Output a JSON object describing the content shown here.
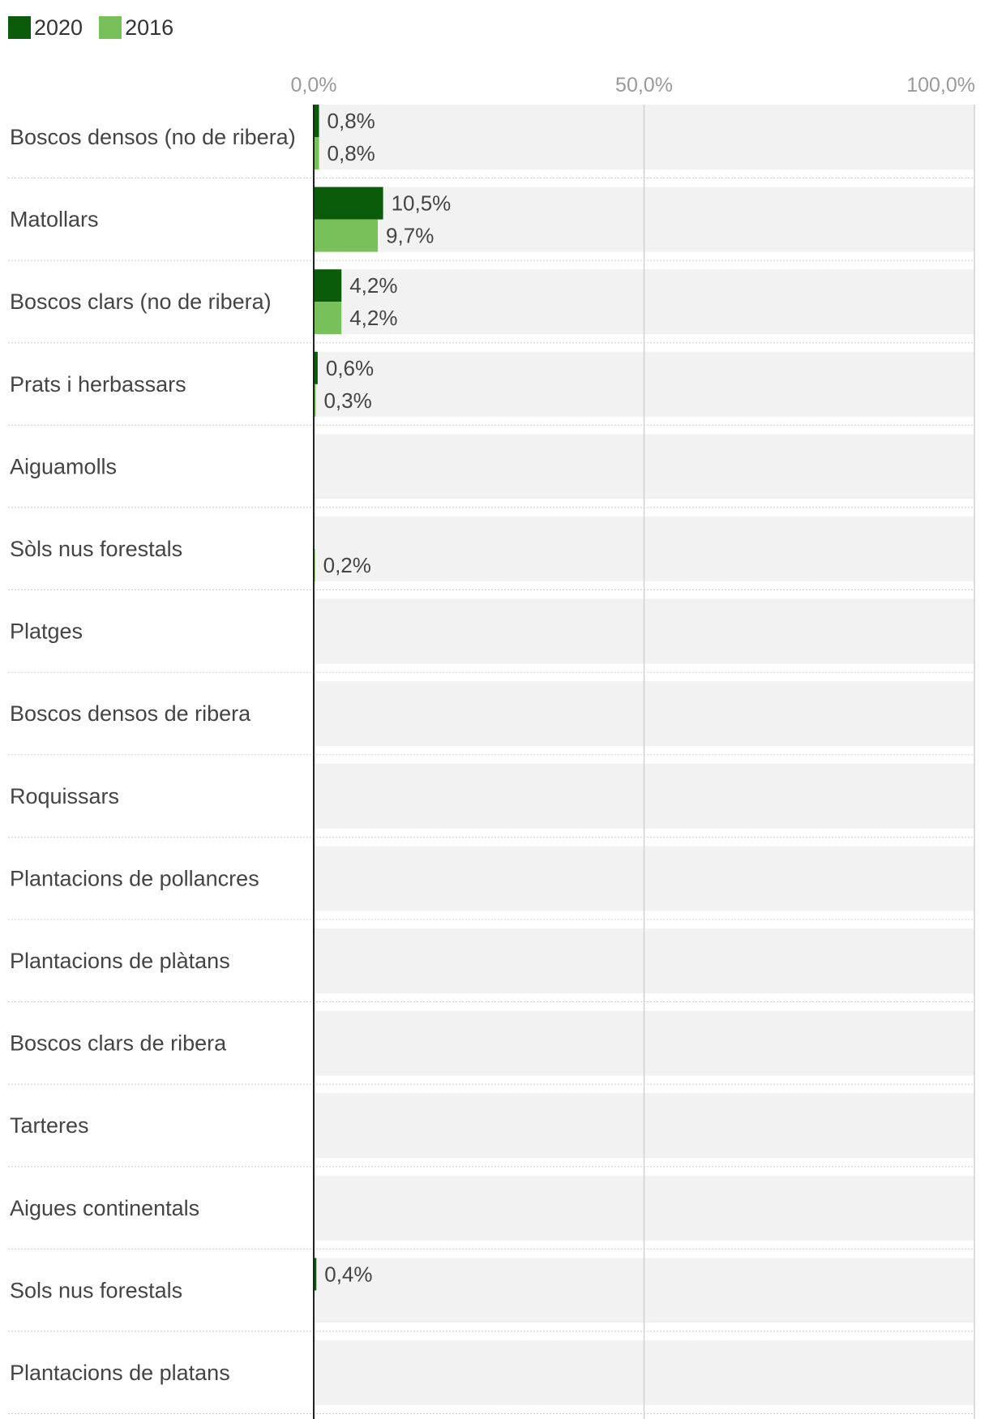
{
  "legend": [
    {
      "name": "2020",
      "color": "#0a5c0a"
    },
    {
      "name": "2016",
      "color": "#78c15a"
    }
  ],
  "chart_data": {
    "type": "bar",
    "orientation": "horizontal",
    "xlim": [
      0,
      100
    ],
    "ticks": [
      0,
      50,
      100
    ],
    "tick_labels": [
      "0,0%",
      "50,0%",
      "100,0%"
    ],
    "grid": true,
    "legend_position": "top-left",
    "categories": [
      "Boscos densos (no de ribera)",
      "Matollars",
      "Boscos clars (no de ribera)",
      "Prats i herbassars",
      "Aiguamolls",
      "Sòls nus forestals",
      "Platges",
      "Boscos densos de ribera",
      "Roquissars",
      "Plantacions de pollancres",
      "Plantacions de plàtans",
      "Boscos clars de ribera",
      "Tarteres",
      "Aigues continentals",
      "Sols nus forestals",
      "Plantacions de platans"
    ],
    "series": [
      {
        "name": "2020",
        "color": "#0a5c0a",
        "values": [
          0.8,
          10.5,
          4.2,
          0.6,
          null,
          null,
          null,
          null,
          null,
          null,
          null,
          null,
          null,
          null,
          0.4,
          null
        ],
        "labels": [
          "0,8%",
          "10,5%",
          "4,2%",
          "0,6%",
          "",
          "",
          "",
          "",
          "",
          "",
          "",
          "",
          "",
          "",
          "0,4%",
          ""
        ]
      },
      {
        "name": "2016",
        "color": "#78c15a",
        "values": [
          0.8,
          9.7,
          4.2,
          0.3,
          null,
          0.2,
          null,
          null,
          null,
          null,
          null,
          null,
          null,
          null,
          null,
          null
        ],
        "labels": [
          "0,8%",
          "9,7%",
          "4,2%",
          "0,3%",
          "",
          "0,2%",
          "",
          "",
          "",
          "",
          "",
          "",
          "",
          "",
          "",
          ""
        ]
      }
    ]
  }
}
